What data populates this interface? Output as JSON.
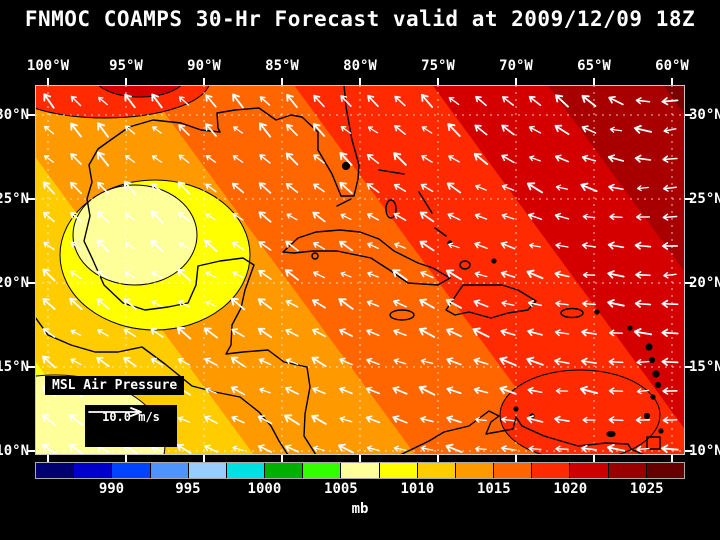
{
  "title": "FNMOC COAMPS 30-Hr Forecast valid at 2009/12/09 18Z",
  "axes": {
    "lon_labels": [
      "100°W",
      "95°W",
      "90°W",
      "85°W",
      "80°W",
      "75°W",
      "70°W",
      "65°W",
      "60°W"
    ],
    "lat_labels": [
      "30°N",
      "25°N",
      "20°N",
      "15°N",
      "10°N"
    ]
  },
  "legend": {
    "field_label": "MSL Air Pressure",
    "wind_scale_label": "10.0 m/s"
  },
  "colorbar": {
    "unit": "mb",
    "tick_labels": [
      "990",
      "995",
      "1000",
      "1005",
      "1010",
      "1015",
      "1020",
      "1025"
    ],
    "colors": [
      "#000070",
      "#0000c8",
      "#0044ff",
      "#4d94ff",
      "#99ccff",
      "#00e0e0",
      "#00b000",
      "#33ff00",
      "#ffff99",
      "#ffff00",
      "#ffcc00",
      "#ff9900",
      "#ff6600",
      "#ff2a00",
      "#cc0000",
      "#990000",
      "#660000"
    ]
  },
  "chart_data": {
    "type": "heatmap",
    "title": "FNMOC COAMPS 30-Hr Forecast valid at 2009/12/09 18Z",
    "field": "MSL Air Pressure",
    "unit": "mb",
    "x_ticks": [
      "100°W",
      "95°W",
      "90°W",
      "85°W",
      "80°W",
      "75°W",
      "70°W",
      "65°W",
      "60°W"
    ],
    "y_ticks": [
      "30°N",
      "25°N",
      "20°N",
      "15°N",
      "10°N"
    ],
    "colorbar_ticks": [
      990,
      995,
      1000,
      1005,
      1010,
      1015,
      1020,
      1025
    ],
    "wind_reference_vector_mps": 10.0,
    "summary": "Sea-level pressure increases from about 1005 mb in the southwest (Gulf of Mexico / Central America) to about 1025 mb in the northeast Atlantic; white wind vectors show easterly trades curving anticyclonically around the high."
  }
}
